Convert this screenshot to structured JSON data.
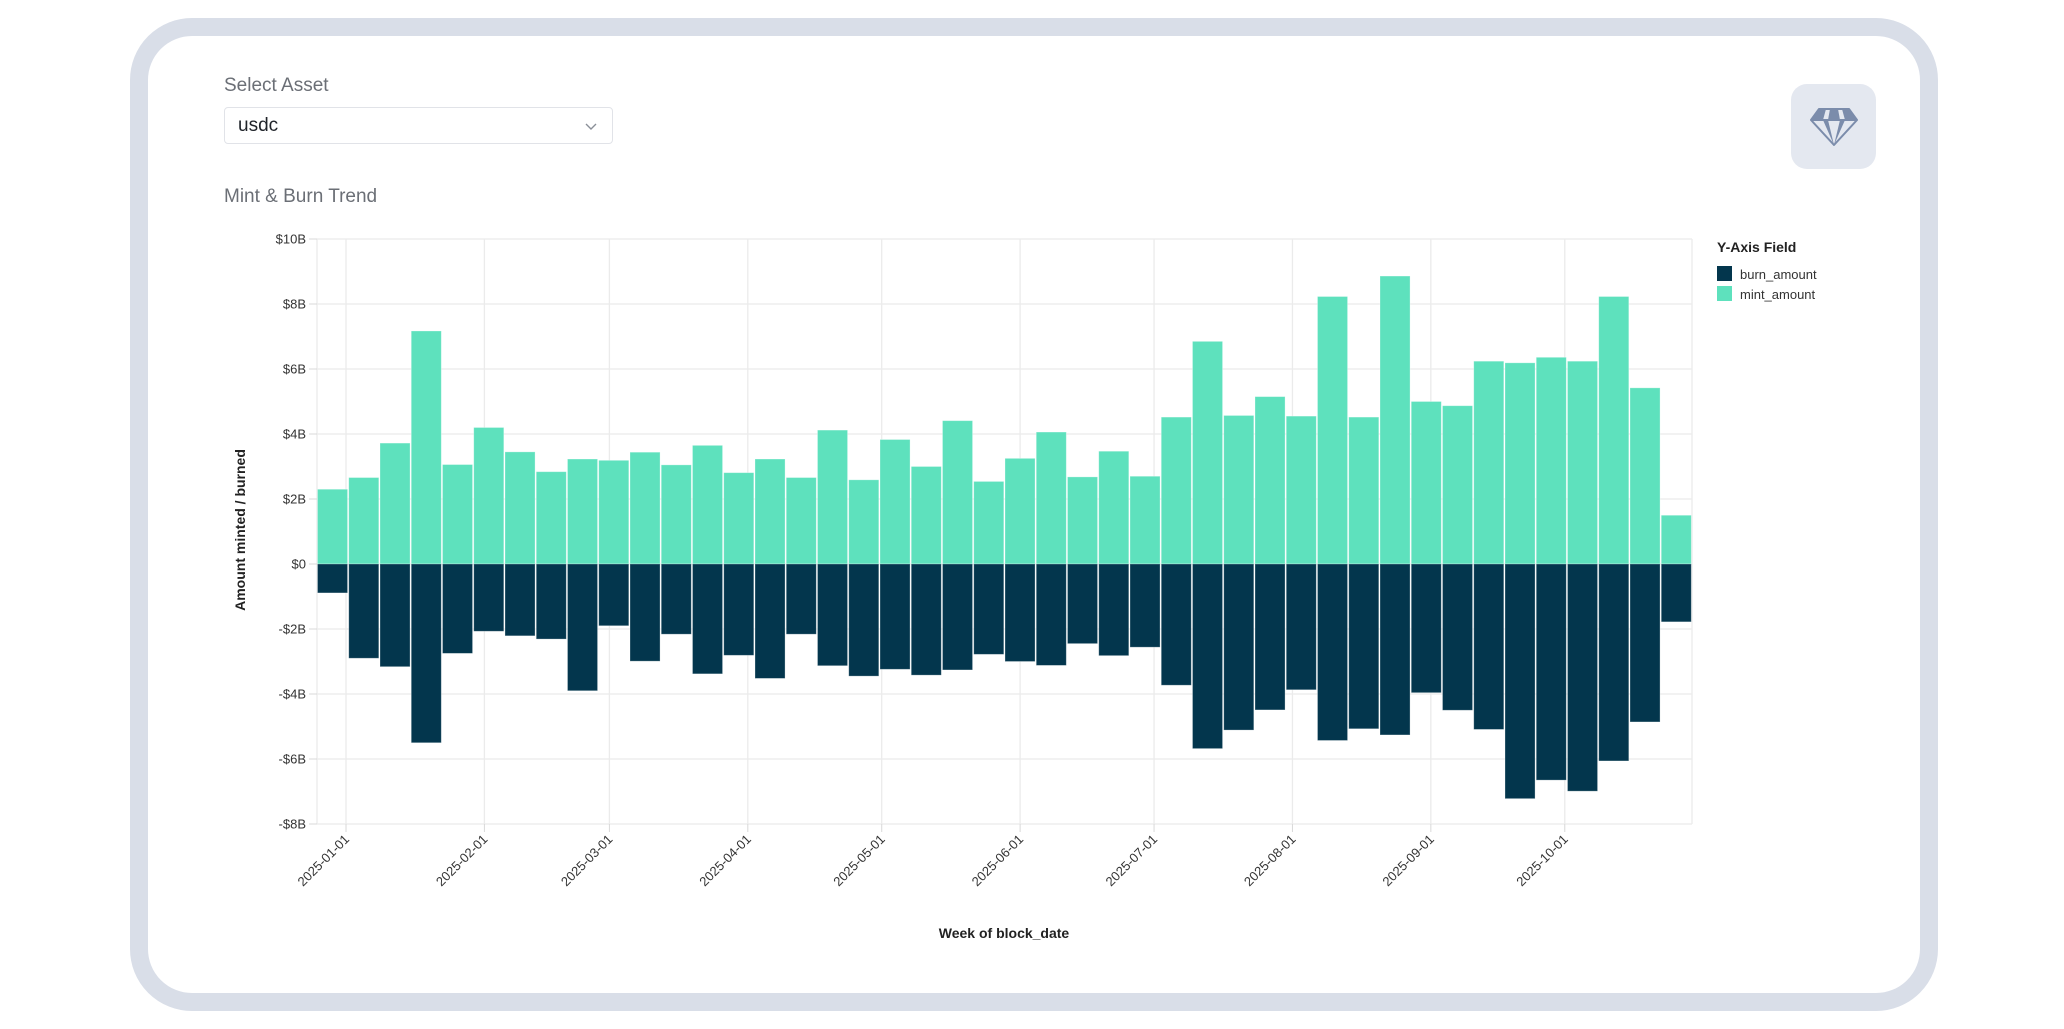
{
  "filter": {
    "label": "Select Asset",
    "selected": "usdc"
  },
  "gem_button": {
    "icon": "diamond-icon"
  },
  "section_title": "Mint & Burn Trend",
  "colors": {
    "mint": "#5ee1bd",
    "burn": "#03364d",
    "grid": "#ebebeb",
    "frame": "#d9dee8",
    "gem_bg": "#e4e8f0",
    "gem_icon": "#7b8cab"
  },
  "chart_data": {
    "type": "bar",
    "stacked": "diverging",
    "xlabel": "Week of block_date",
    "ylabel": "Amount minted / burned",
    "ylim": [
      -8,
      10
    ],
    "y_unit": "B USD",
    "y_ticks": [
      10,
      8,
      6,
      4,
      2,
      0,
      -2,
      -4,
      -6,
      -8
    ],
    "y_tick_labels": [
      "$10B",
      "$8B",
      "$6B",
      "$4B",
      "$2B",
      "$0",
      "-$2B",
      "-$4B",
      "-$6B",
      "-$8B"
    ],
    "x_domain": [
      "2024-12-25",
      "2025-10-31"
    ],
    "x_ticks": [
      "2025-01-01",
      "2025-02-01",
      "2025-03-01",
      "2025-04-01",
      "2025-05-01",
      "2025-06-01",
      "2025-07-01",
      "2025-08-01",
      "2025-09-01",
      "2025-10-01"
    ],
    "grid": true,
    "legend": {
      "title": "Y-Axis Field",
      "position": "top-right",
      "entries": [
        "burn_amount",
        "mint_amount"
      ]
    },
    "week_count": 44,
    "series": [
      {
        "name": "mint_amount",
        "values": [
          2.3,
          2.66,
          3.72,
          7.17,
          3.06,
          4.2,
          3.45,
          2.84,
          3.23,
          3.19,
          3.44,
          3.05,
          3.65,
          2.81,
          3.23,
          2.66,
          4.12,
          2.59,
          3.83,
          3.0,
          4.41,
          2.54,
          3.25,
          4.06,
          2.68,
          3.47,
          2.7,
          4.52,
          6.85,
          4.57,
          5.15,
          4.55,
          8.23,
          4.52,
          8.86,
          5.0,
          4.87,
          6.24,
          6.19,
          6.36,
          6.24,
          8.23,
          5.42,
          1.5
        ]
      },
      {
        "name": "burn_amount",
        "values": [
          -0.89,
          -2.9,
          -3.16,
          -5.5,
          -2.75,
          -2.07,
          -2.21,
          -2.31,
          -3.9,
          -1.9,
          -2.99,
          -2.16,
          -3.38,
          -2.81,
          -3.52,
          -2.16,
          -3.13,
          -3.45,
          -3.24,
          -3.42,
          -3.26,
          -2.78,
          -3.0,
          -3.12,
          -2.45,
          -2.82,
          -2.56,
          -3.73,
          -5.68,
          -5.11,
          -4.49,
          -3.87,
          -5.43,
          -5.07,
          -5.26,
          -3.96,
          -4.5,
          -5.09,
          -7.22,
          -6.65,
          -6.99,
          -6.06,
          -4.86,
          -1.78
        ]
      }
    ]
  }
}
